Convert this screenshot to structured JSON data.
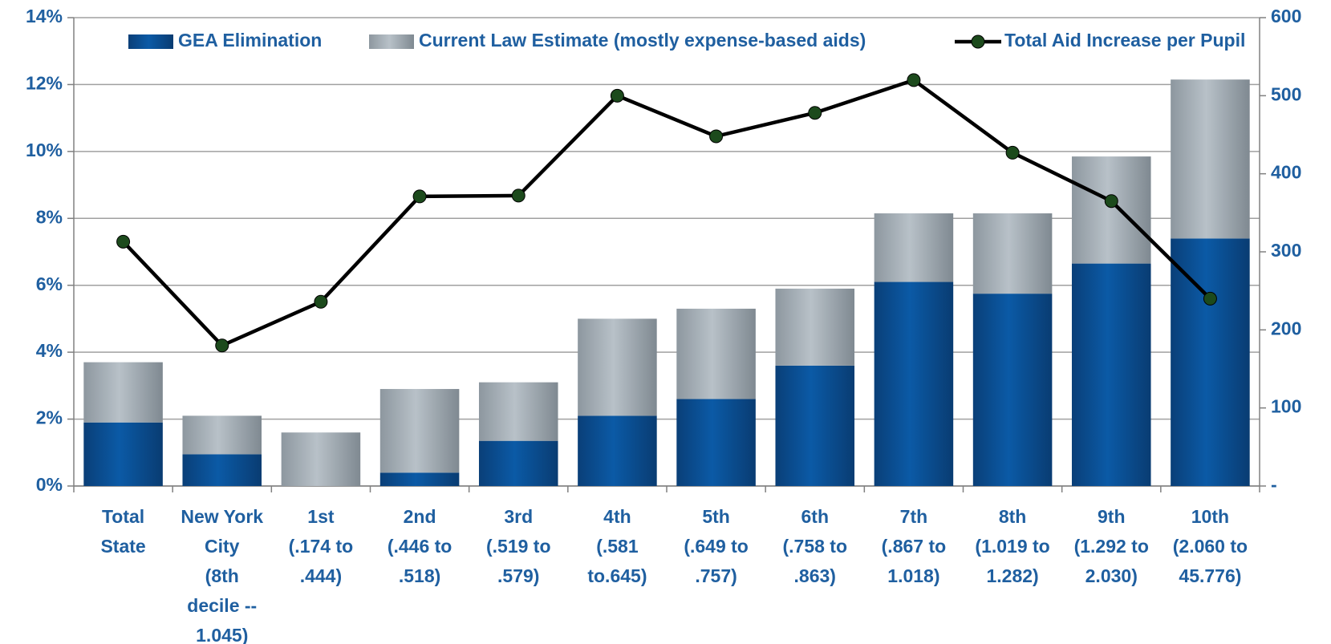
{
  "chart_data": {
    "type": "bar",
    "stacked": true,
    "categories": [
      [
        "Total",
        "State"
      ],
      [
        "New York",
        "City",
        "(8th",
        "decile --",
        "1.045)"
      ],
      [
        "1st",
        "(.174 to",
        ".444)"
      ],
      [
        "2nd",
        "(.446 to",
        ".518)"
      ],
      [
        "3rd",
        "(.519 to",
        ".579)"
      ],
      [
        "4th",
        "(.581",
        "to.645)"
      ],
      [
        "5th",
        "(.649 to",
        ".757)"
      ],
      [
        "6th",
        "(.758 to",
        ".863)"
      ],
      [
        "7th",
        "(.867 to",
        "1.018)"
      ],
      [
        "8th",
        "(1.019 to",
        "1.282)"
      ],
      [
        "9th",
        "(1.292 to",
        "2.030)"
      ],
      [
        "10th",
        "(2.060 to",
        "45.776)"
      ]
    ],
    "series": [
      {
        "name": "GEA Elimination",
        "type": "bar",
        "color": "#0b4f93",
        "values": [
          1.9,
          0.95,
          0,
          0.4,
          1.35,
          2.1,
          2.6,
          3.6,
          6.1,
          5.75,
          6.65,
          7.4
        ]
      },
      {
        "name": "Current Law Estimate (mostly expense-based aids)",
        "type": "bar",
        "color": "#a3adb5",
        "values": [
          1.8,
          1.15,
          1.6,
          2.5,
          1.75,
          2.9,
          2.7,
          2.3,
          2.05,
          2.4,
          3.2,
          4.75
        ]
      },
      {
        "name": "Total Aid  Increase per Pupil",
        "type": "line",
        "axis": "y2",
        "color": "#000000",
        "marker_color": "#1c4a1c",
        "values": [
          313,
          180,
          236,
          371,
          372,
          500,
          448,
          478,
          520,
          427,
          365,
          240
        ]
      }
    ],
    "ylim": [
      0,
      14
    ],
    "yticks": [
      {
        "value": 0,
        "label": "0%"
      },
      {
        "value": 2,
        "label": "2%"
      },
      {
        "value": 4,
        "label": "4%"
      },
      {
        "value": 6,
        "label": "6%"
      },
      {
        "value": 8,
        "label": "8%"
      },
      {
        "value": 10,
        "label": "10%"
      },
      {
        "value": 12,
        "label": "12%"
      },
      {
        "value": 14,
        "label": "14%"
      }
    ],
    "y2lim": [
      0,
      600
    ],
    "y2ticks": [
      {
        "value": 0,
        "label": "-"
      },
      100,
      200,
      300,
      400,
      500,
      600
    ],
    "grid": true,
    "legend": "top"
  }
}
